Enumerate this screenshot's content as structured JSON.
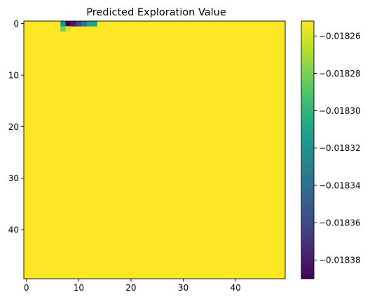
{
  "chart_data": {
    "type": "heatmap",
    "title": "Predicted Exploration Value",
    "xlabel": "",
    "ylabel": "",
    "grid": false,
    "colormap": "viridis",
    "shape": [
      50,
      50
    ],
    "background_value": -0.018252,
    "vmin": -0.01839,
    "vmax": -0.018252,
    "xlim": [
      -0.5,
      49.5
    ],
    "ylim": [
      49.5,
      -0.5
    ],
    "x_ticks": [
      "0",
      "10",
      "20",
      "30",
      "40"
    ],
    "y_ticks": [
      "0",
      "10",
      "20",
      "30",
      "40"
    ],
    "colorbar": {
      "ticks": [
        -0.01826,
        -0.01828,
        -0.0183,
        -0.01832,
        -0.01834,
        -0.01836,
        -0.01838
      ],
      "tick_labels": [
        "−0.01826",
        "−0.01828",
        "−0.01830",
        "−0.01832",
        "−0.01834",
        "−0.01836",
        "−0.01838"
      ]
    },
    "cells": [
      {
        "row": 0,
        "col": 7,
        "value": -0.01832
      },
      {
        "row": 0,
        "col": 8,
        "value": -0.01839
      },
      {
        "row": 0,
        "col": 9,
        "value": -0.01838
      },
      {
        "row": 0,
        "col": 10,
        "value": -0.01836
      },
      {
        "row": 0,
        "col": 11,
        "value": -0.01834
      },
      {
        "row": 0,
        "col": 12,
        "value": -0.01831
      },
      {
        "row": 0,
        "col": 13,
        "value": -0.01831
      },
      {
        "row": 1,
        "col": 7,
        "value": -0.01828
      },
      {
        "row": 1,
        "col": 8,
        "value": -0.01826
      }
    ]
  }
}
